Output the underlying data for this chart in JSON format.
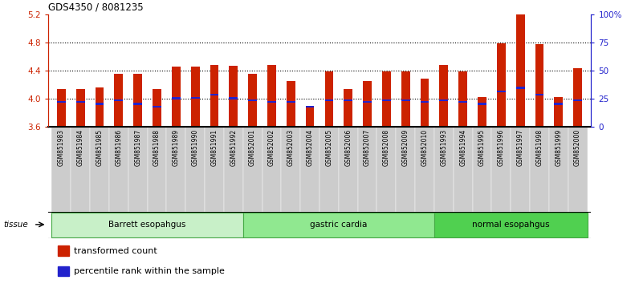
{
  "title": "GDS4350 / 8081235",
  "samples": [
    "GSM851983",
    "GSM851984",
    "GSM851985",
    "GSM851986",
    "GSM851987",
    "GSM851988",
    "GSM851989",
    "GSM851990",
    "GSM851991",
    "GSM851992",
    "GSM852001",
    "GSM852002",
    "GSM852003",
    "GSM852004",
    "GSM852005",
    "GSM852006",
    "GSM852007",
    "GSM852008",
    "GSM852009",
    "GSM852010",
    "GSM851993",
    "GSM851994",
    "GSM851995",
    "GSM851996",
    "GSM851997",
    "GSM851998",
    "GSM851999",
    "GSM852000"
  ],
  "bar_heights": [
    4.13,
    4.13,
    4.16,
    4.35,
    4.35,
    4.13,
    4.45,
    4.45,
    4.48,
    4.46,
    4.35,
    4.47,
    4.25,
    3.87,
    4.38,
    4.13,
    4.25,
    4.38,
    4.38,
    4.28,
    4.47,
    4.38,
    4.02,
    4.78,
    5.2,
    4.77,
    4.02,
    4.43
  ],
  "percentile_heights": [
    3.95,
    3.95,
    3.92,
    3.97,
    3.92,
    3.88,
    4.0,
    4.01,
    4.05,
    4.0,
    3.97,
    3.95,
    3.95,
    3.88,
    3.97,
    3.97,
    3.95,
    3.97,
    3.97,
    3.95,
    3.97,
    3.95,
    3.92,
    4.1,
    4.15,
    4.05,
    3.92,
    3.97
  ],
  "groups": [
    {
      "label": "Barrett esopahgus",
      "start": 0,
      "end": 9,
      "color": "#c8f0c8"
    },
    {
      "label": "gastric cardia",
      "start": 10,
      "end": 19,
      "color": "#90e890"
    },
    {
      "label": "normal esopahgus",
      "start": 20,
      "end": 27,
      "color": "#50d050"
    }
  ],
  "ylim": [
    3.6,
    5.2
  ],
  "yticks": [
    3.6,
    4.0,
    4.4,
    4.8,
    5.2
  ],
  "ytick_labels_left": [
    "3.6",
    "4.0",
    "4.4",
    "4.8",
    "5.2"
  ],
  "right_yticks_pct": [
    0,
    25,
    50,
    75,
    100
  ],
  "right_ytick_labels": [
    "0",
    "25",
    "50",
    "75",
    "100%"
  ],
  "bar_color": "#cc2200",
  "percentile_color": "#2222cc",
  "bar_bottom": 3.6,
  "tissue_label": "tissue",
  "legend_items": [
    {
      "label": "transformed count",
      "color": "#cc2200"
    },
    {
      "label": "percentile rank within the sample",
      "color": "#2222cc"
    }
  ],
  "grid_yticks": [
    4.0,
    4.4,
    4.8
  ],
  "axis_color_left": "#cc2200",
  "axis_color_right": "#2222cc",
  "xticklabel_bg": "#cccccc",
  "tissue_group_border": "#000000"
}
